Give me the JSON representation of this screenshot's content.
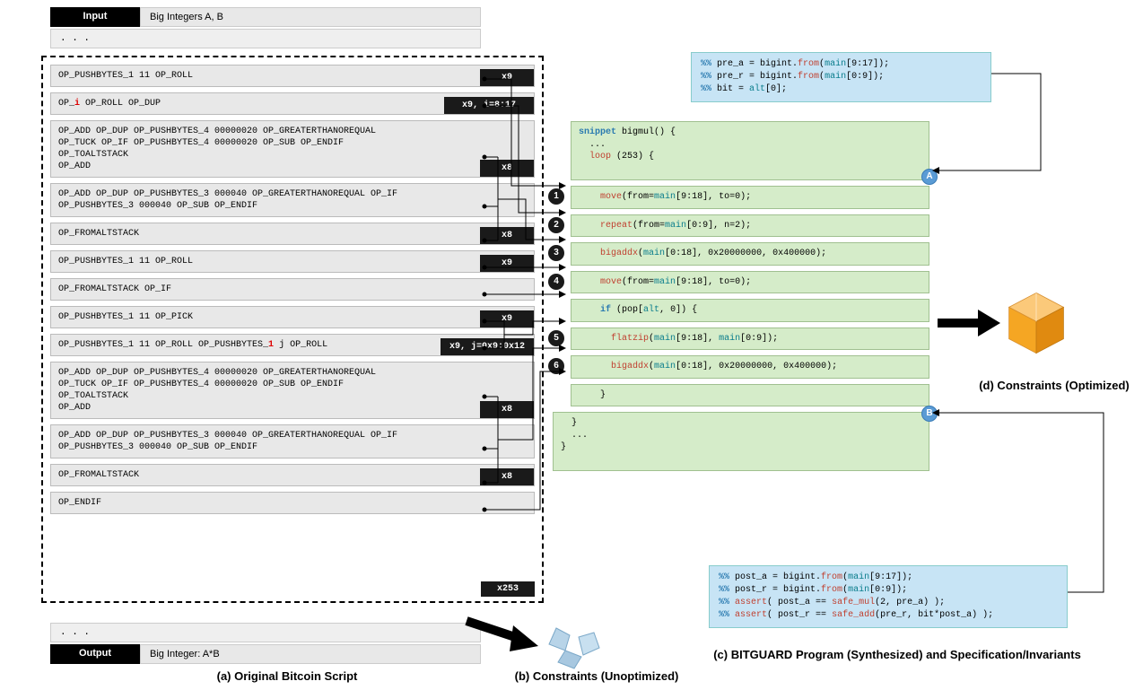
{
  "input": {
    "label": "Input",
    "value": "Big Integers A, B"
  },
  "output": {
    "label": "Output",
    "value": "Big Integer: A*B"
  },
  "dots": ". . .",
  "scripts": [
    {
      "text": "OP_PUSHBYTES_1 11 OP_ROLL",
      "badge": "x9"
    },
    {
      "text": "OP_i OP_ROLL OP_DUP",
      "badge": "x9, i=8:17",
      "red_idx": 3
    },
    {
      "text": "OP_ADD OP_DUP OP_PUSHBYTES_4 00000020 OP_GREATERTHANOREQUAL\nOP_TUCK OP_IF OP_PUSHBYTES_4 00000020 OP_SUB OP_ENDIF\nOP_TOALTSTACK\nOP_ADD",
      "badge": "x8"
    },
    {
      "text": "OP_ADD OP_DUP OP_PUSHBYTES_3 000040 OP_GREATERTHANOREQUAL OP_IF\nOP_PUSHBYTES_3 000040 OP_SUB OP_ENDIF",
      "badge": null
    },
    {
      "text": "OP_FROMALTSTACK",
      "badge": "x8"
    },
    {
      "text": "OP_PUSHBYTES_1 11 OP_ROLL",
      "badge": "x9"
    },
    {
      "text": "OP_FROMALTSTACK OP_IF",
      "badge": null
    },
    {
      "text": "OP_PUSHBYTES_1 11 OP_PICK",
      "badge": "x9"
    },
    {
      "text": "OP_PUSHBYTES_1 11 OP_ROLL OP_PUSHBYTES_1 j OP_ROLL",
      "badge": "x9, j=0x9:0x12",
      "red_idx": 39
    },
    {
      "text": "OP_ADD OP_DUP OP_PUSHBYTES_4 00000020 OP_GREATERTHANOREQUAL\nOP_TUCK OP_IF OP_PUSHBYTES_4 00000020 OP_SUB OP_ENDIF\nOP_TOALTSTACK\nOP_ADD",
      "badge": "x8"
    },
    {
      "text": "OP_ADD OP_DUP OP_PUSHBYTES_3 000040 OP_GREATERTHANOREQUAL OP_IF\nOP_PUSHBYTES_3 000040 OP_SUB OP_ENDIF",
      "badge": null
    },
    {
      "text": "OP_FROMALTSTACK",
      "badge": "x8"
    },
    {
      "text": "OP_ENDIF",
      "badge": null
    }
  ],
  "loop_badge": "x253",
  "blue_top": {
    "l1": "%% pre_a = bigint.from(main[9:17]);",
    "l2": "%% pre_r = bigint.from(main[0:9]);",
    "l3": "%% bit = alt[0];"
  },
  "blue_bot": {
    "l1": "%% post_a = bigint.from(main[9:17]);",
    "l2": "%% post_r = bigint.from(main[0:9]);",
    "l3": "%% assert( post_a == safe_mul(2, pre_a) );",
    "l4": "%% assert( post_r == safe_add(pre_r, bit*post_a) );"
  },
  "green": {
    "header": "snippet bigmul() {\n  ...\n  loop (253) {",
    "l1": "move(from=main[9:18], to=0);",
    "l2": "repeat(from=main[0:9], n=2);",
    "l3": "bigaddx(main[0:18], 0x20000000, 0x400000);",
    "l4": "move(from=main[9:18], to=0);",
    "lif": "if (pop[alt, 0]) {",
    "l5": "flatzip(main[9:18], main[0:9]);",
    "l6": "bigaddx(main[0:18], 0x20000000, 0x400000);",
    "lclose": "    }",
    "footer": "  }\n  ...\n}"
  },
  "captions": {
    "a": "(a) Original Bitcoin Script",
    "b": "(b) Constraints (Unoptimized)",
    "c": "(c) BITGUARD Program (Synthesized) and Specification/Invariants",
    "d": "(d) Constraints (Optimized)"
  },
  "colors": {
    "green_bg": "#d5ecc9",
    "blue_bg": "#c7e4f5",
    "script_bg": "#e8e8e8",
    "badge_bg": "#1a1a1a",
    "red": "#d00",
    "cyan": "#0a7d8c",
    "kw_blue": "#2a7ab0",
    "fn_red": "#c04030",
    "box_orange": "#f5a623",
    "crystal_blue": "#b8d4e8"
  }
}
